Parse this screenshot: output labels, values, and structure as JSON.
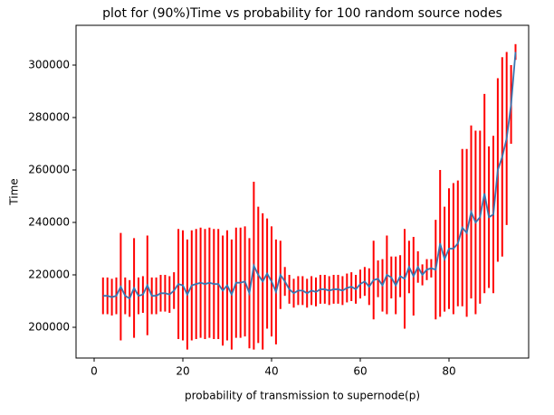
{
  "chart_data": {
    "type": "errorbar",
    "title": "plot for (90%)Time vs probability for 100 random source nodes",
    "x_label": "probability of transmission to supernode(p)",
    "y_label": "Time",
    "x": [
      2,
      3,
      4,
      5,
      6,
      7,
      8,
      9,
      10,
      11,
      12,
      13,
      14,
      15,
      16,
      17,
      18,
      19,
      20,
      21,
      22,
      23,
      24,
      25,
      26,
      27,
      28,
      29,
      30,
      31,
      32,
      33,
      34,
      35,
      36,
      37,
      38,
      39,
      40,
      41,
      42,
      43,
      44,
      45,
      46,
      47,
      48,
      49,
      50,
      51,
      52,
      53,
      54,
      55,
      56,
      57,
      58,
      59,
      60,
      61,
      62,
      63,
      64,
      65,
      66,
      67,
      68,
      69,
      70,
      71,
      72,
      73,
      74,
      75,
      76,
      77,
      78,
      79,
      80,
      81,
      82,
      83,
      84,
      85,
      86,
      87,
      88,
      89,
      90,
      91,
      92,
      93,
      94,
      95
    ],
    "series": [
      {
        "color": "#3a75b0",
        "error_color": "#ff0000",
        "values": [
          212000,
          212000,
          211500,
          212000,
          215500,
          212000,
          211000,
          215000,
          212000,
          212500,
          216000,
          212000,
          212000,
          213000,
          213000,
          212500,
          214000,
          216500,
          216000,
          212500,
          216000,
          216500,
          217000,
          216500,
          217000,
          216500,
          216500,
          214000,
          216000,
          212500,
          217000,
          217000,
          217500,
          213000,
          223500,
          220000,
          217500,
          220500,
          217500,
          213500,
          220000,
          217500,
          214500,
          213000,
          214000,
          214000,
          213000,
          214000,
          213500,
          214500,
          214500,
          214000,
          214500,
          214500,
          214000,
          215000,
          215500,
          214500,
          216500,
          217500,
          215500,
          218000,
          218500,
          216000,
          220000,
          219000,
          216000,
          219500,
          218500,
          223000,
          219500,
          223000,
          220000,
          222000,
          222500,
          222000,
          232000,
          226000,
          230000,
          230000,
          232000,
          238000,
          236000,
          244000,
          240000,
          242000,
          251000,
          242000,
          243000,
          260000,
          265000,
          272000,
          285000,
          305000
        ],
        "errors": [
          7000,
          7000,
          7000,
          7000,
          20500,
          7000,
          7000,
          19000,
          7000,
          7000,
          19000,
          7000,
          7000,
          7000,
          7000,
          7000,
          7000,
          21000,
          21000,
          21000,
          21000,
          21000,
          21000,
          21000,
          21000,
          21000,
          21000,
          21000,
          21000,
          21000,
          21000,
          21000,
          21000,
          21000,
          32000,
          26000,
          26000,
          21000,
          21000,
          20000,
          13000,
          5500,
          5500,
          5500,
          5500,
          5500,
          5500,
          5500,
          5500,
          5500,
          5500,
          5500,
          5500,
          5500,
          5500,
          5500,
          5500,
          5500,
          5500,
          5500,
          7000,
          15000,
          7000,
          10000,
          15000,
          8000,
          11000,
          8000,
          19000,
          10000,
          15000,
          6000,
          4000,
          4000,
          3500,
          19000,
          28000,
          20000,
          23000,
          25000,
          24000,
          30000,
          32000,
          33000,
          35000,
          33000,
          38000,
          27000,
          30000,
          35000,
          38000,
          33000,
          15000,
          3000
        ]
      }
    ],
    "xlim": [
      -4.08,
      97.96
    ],
    "xticks": [
      0,
      20,
      40,
      60,
      80
    ],
    "ylim": [
      188276,
      315172
    ],
    "yticks": [
      200000,
      220000,
      240000,
      260000,
      280000,
      300000
    ]
  }
}
